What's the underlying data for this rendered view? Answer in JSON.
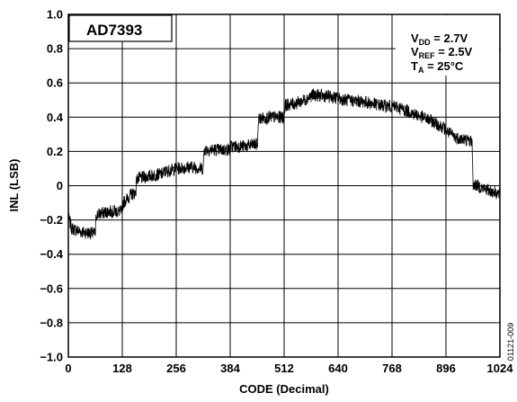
{
  "chart_data": {
    "type": "line",
    "title": "AD7393",
    "xlabel": "CODE (Decimal)",
    "ylabel": "INL (LSB)",
    "xlim": [
      0,
      1024
    ],
    "ylim": [
      -1.0,
      1.0
    ],
    "grid": true,
    "x_ticks": [
      "0",
      "128",
      "256",
      "384",
      "512",
      "640",
      "768",
      "896",
      "1024"
    ],
    "y_ticks": [
      "1.0",
      "0.8",
      "0.6",
      "0.4",
      "0.2",
      "0",
      "−0.2",
      "−0.4",
      "−0.6",
      "−0.8",
      "−1.0"
    ],
    "conditions": {
      "vdd": {
        "main": "V",
        "sub": "DD",
        "rest": " = 2.7V"
      },
      "vref": {
        "main": "V",
        "sub": "REF",
        "rest": " = 2.5V"
      },
      "ta": {
        "main": "T",
        "sub": "A",
        "rest": " = 25°C"
      }
    },
    "figure_id": "01121-009",
    "series": [
      {
        "style": "noisy band (≈ ±0.03 LSB code-to-code noise)",
        "color": "#000000",
        "x": [
          0,
          8,
          32,
          64,
          66,
          96,
          128,
          130,
          150,
          160,
          162,
          200,
          225,
          227,
          256,
          290,
          320,
          322,
          352,
          383,
          385,
          420,
          440,
          449,
          451,
          480,
          512,
          514,
          540,
          560,
          580,
          620,
          660,
          700,
          740,
          780,
          800,
          830,
          860,
          890,
          896,
          920,
          940,
          958,
          960,
          990,
          1024
        ],
        "y": [
          -0.18,
          -0.25,
          -0.27,
          -0.28,
          -0.17,
          -0.15,
          -0.15,
          -0.1,
          -0.05,
          -0.04,
          0.04,
          0.06,
          0.07,
          0.08,
          0.1,
          0.11,
          0.1,
          0.21,
          0.21,
          0.21,
          0.23,
          0.23,
          0.24,
          0.24,
          0.39,
          0.4,
          0.4,
          0.47,
          0.48,
          0.5,
          0.53,
          0.52,
          0.5,
          0.49,
          0.47,
          0.46,
          0.44,
          0.41,
          0.38,
          0.34,
          0.32,
          0.28,
          0.27,
          0.26,
          0.01,
          -0.02,
          -0.05
        ]
      }
    ]
  }
}
